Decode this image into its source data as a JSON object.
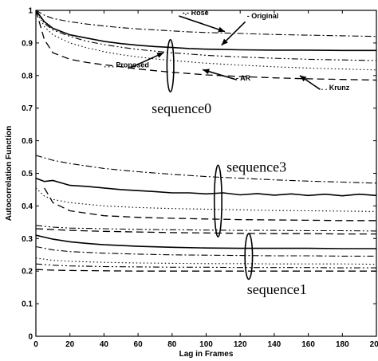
{
  "chart_data": {
    "type": "line",
    "xlabel": "Lag in Frames",
    "ylabel": "Autocorrelation Function",
    "xlim": [
      0,
      200
    ],
    "ylim": [
      0,
      1
    ],
    "xticks": [
      0,
      20,
      40,
      60,
      80,
      100,
      120,
      140,
      160,
      180,
      200
    ],
    "yticks": [
      0,
      0.1,
      0.2,
      0.3,
      0.4,
      0.5,
      0.6,
      0.7,
      0.8,
      0.9,
      1
    ],
    "ytick_labels": [
      "0",
      "0.1",
      "0.2",
      "0.3",
      "0.4",
      "0.5",
      "0.6",
      "0.7",
      "0.8",
      "0.9",
      "1"
    ],
    "grid": false,
    "method_labels": [
      {
        "text": "- Original",
        "x": 124,
        "y": 0.975
      },
      {
        "text": "-.- Rose",
        "x": 86,
        "y": 0.985
      },
      {
        "text": ". . . Proposed",
        "x": 40,
        "y": 0.825
      },
      {
        "text": "- - AR",
        "x": 115,
        "y": 0.785
      },
      {
        "text": "- . . Krunz",
        "x": 165,
        "y": 0.755
      }
    ],
    "group_labels": [
      {
        "text": "sequence0",
        "x": 68,
        "y": 0.685
      },
      {
        "text": "sequence3",
        "x": 112,
        "y": 0.505
      },
      {
        "text": "sequence1",
        "x": 124,
        "y": 0.13
      }
    ],
    "series": [
      {
        "group": "sequence0",
        "name": "Original",
        "style": "solid",
        "x": [
          0,
          5,
          10,
          20,
          30,
          40,
          50,
          60,
          70,
          80,
          90,
          100,
          110,
          120,
          140,
          160,
          180,
          200
        ],
        "y": [
          1.0,
          0.965,
          0.945,
          0.925,
          0.915,
          0.905,
          0.898,
          0.893,
          0.889,
          0.886,
          0.883,
          0.881,
          0.88,
          0.879,
          0.878,
          0.878,
          0.877,
          0.877
        ]
      },
      {
        "group": "sequence0",
        "name": "Rose",
        "style": "dashdot",
        "x": [
          0,
          5,
          10,
          20,
          30,
          40,
          50,
          60,
          70,
          80,
          90,
          100,
          120,
          140,
          160,
          180,
          200
        ],
        "y": [
          1.0,
          0.985,
          0.975,
          0.965,
          0.958,
          0.952,
          0.947,
          0.943,
          0.94,
          0.937,
          0.934,
          0.932,
          0.929,
          0.926,
          0.924,
          0.922,
          0.92
        ]
      },
      {
        "group": "sequence0",
        "name": "Proposed",
        "style": "dotted",
        "x": [
          0,
          5,
          10,
          20,
          30,
          40,
          50,
          60,
          70,
          80,
          90,
          100,
          120,
          140,
          160,
          180,
          200
        ],
        "y": [
          1.0,
          0.95,
          0.925,
          0.9,
          0.885,
          0.873,
          0.864,
          0.857,
          0.851,
          0.846,
          0.842,
          0.838,
          0.832,
          0.827,
          0.823,
          0.82,
          0.817
        ]
      },
      {
        "group": "sequence0",
        "name": "AR",
        "style": "dashed",
        "x": [
          0,
          5,
          10,
          20,
          30,
          40,
          50,
          60,
          70,
          80,
          90,
          100,
          120,
          140,
          160,
          180,
          200
        ],
        "y": [
          1.0,
          0.91,
          0.87,
          0.85,
          0.84,
          0.833,
          0.827,
          0.82,
          0.815,
          0.81,
          0.806,
          0.802,
          0.797,
          0.793,
          0.79,
          0.788,
          0.786
        ]
      },
      {
        "group": "sequence0",
        "name": "Krunz",
        "style": "dashdotdot",
        "x": [
          0,
          5,
          10,
          20,
          30,
          40,
          50,
          60,
          80,
          100,
          120,
          140,
          160,
          180,
          200
        ],
        "y": [
          1.0,
          0.96,
          0.94,
          0.92,
          0.905,
          0.895,
          0.887,
          0.88,
          0.87,
          0.862,
          0.857,
          0.853,
          0.85,
          0.848,
          0.846
        ]
      },
      {
        "group": "sequence3",
        "name": "Rose",
        "style": "dashdot",
        "x": [
          0,
          10,
          20,
          40,
          60,
          80,
          100,
          120,
          140,
          160,
          180,
          200
        ],
        "y": [
          0.555,
          0.54,
          0.53,
          0.515,
          0.505,
          0.497,
          0.49,
          0.485,
          0.48,
          0.476,
          0.473,
          0.47
        ]
      },
      {
        "group": "sequence3",
        "name": "Original",
        "style": "solid",
        "x": [
          0,
          5,
          10,
          20,
          30,
          40,
          50,
          60,
          70,
          80,
          90,
          100,
          110,
          120,
          130,
          140,
          150,
          160,
          170,
          180,
          190,
          200
        ],
        "y": [
          0.485,
          0.475,
          0.478,
          0.463,
          0.46,
          0.455,
          0.45,
          0.447,
          0.444,
          0.44,
          0.44,
          0.437,
          0.44,
          0.434,
          0.438,
          0.433,
          0.437,
          0.432,
          0.436,
          0.431,
          0.436,
          0.432
        ]
      },
      {
        "group": "sequence3",
        "name": "Proposed",
        "style": "dotted",
        "x": [
          0,
          5,
          10,
          20,
          40,
          60,
          80,
          100,
          120,
          140,
          160,
          180,
          200
        ],
        "y": [
          0.455,
          0.43,
          0.42,
          0.41,
          0.4,
          0.395,
          0.392,
          0.39,
          0.388,
          0.386,
          0.385,
          0.384,
          0.383
        ]
      },
      {
        "group": "sequence3",
        "name": "AR",
        "style": "dashed",
        "x": [
          5,
          10,
          20,
          40,
          60,
          80,
          100,
          120,
          140,
          160,
          180,
          200
        ],
        "y": [
          0.455,
          0.41,
          0.385,
          0.37,
          0.365,
          0.362,
          0.36,
          0.358,
          0.357,
          0.356,
          0.355,
          0.355
        ]
      },
      {
        "group": "sequence3",
        "name": "Krunz",
        "style": "dashdotdot",
        "x": [
          0,
          10,
          20,
          40,
          60,
          80,
          100,
          120,
          140,
          160,
          180,
          200
        ],
        "y": [
          0.34,
          0.335,
          0.332,
          0.33,
          0.328,
          0.327,
          0.326,
          0.325,
          0.325,
          0.324,
          0.324,
          0.323
        ]
      },
      {
        "group": "sequence3",
        "name": "AR (lower)",
        "style": "dashed",
        "x": [
          0,
          20,
          40,
          60,
          80,
          100,
          120,
          140,
          160,
          180,
          200
        ],
        "y": [
          0.33,
          0.325,
          0.322,
          0.32,
          0.318,
          0.317,
          0.316,
          0.315,
          0.315,
          0.314,
          0.314
        ]
      },
      {
        "group": "sequence1",
        "name": "Original",
        "style": "solid",
        "x": [
          0,
          10,
          20,
          30,
          40,
          60,
          80,
          100,
          120,
          140,
          160,
          180,
          200
        ],
        "y": [
          0.31,
          0.298,
          0.29,
          0.285,
          0.281,
          0.276,
          0.273,
          0.271,
          0.27,
          0.27,
          0.27,
          0.269,
          0.269
        ]
      },
      {
        "group": "sequence1",
        "name": "Rose",
        "style": "dashdot",
        "x": [
          0,
          10,
          20,
          40,
          60,
          80,
          100,
          120,
          140,
          160,
          180,
          200
        ],
        "y": [
          0.275,
          0.265,
          0.26,
          0.255,
          0.252,
          0.25,
          0.249,
          0.248,
          0.247,
          0.247,
          0.246,
          0.246
        ]
      },
      {
        "group": "sequence1",
        "name": "Proposed",
        "style": "dotted",
        "x": [
          0,
          10,
          20,
          40,
          60,
          80,
          100,
          120,
          140,
          160,
          180,
          200
        ],
        "y": [
          0.24,
          0.233,
          0.23,
          0.227,
          0.225,
          0.224,
          0.223,
          0.223,
          0.222,
          0.222,
          0.222,
          0.221
        ]
      },
      {
        "group": "sequence1",
        "name": "Krunz",
        "style": "dashdotdot",
        "x": [
          0,
          10,
          20,
          40,
          60,
          80,
          100,
          120,
          140,
          160,
          180,
          200
        ],
        "y": [
          0.222,
          0.218,
          0.216,
          0.214,
          0.213,
          0.212,
          0.212,
          0.211,
          0.211,
          0.211,
          0.21,
          0.21
        ]
      },
      {
        "group": "sequence1",
        "name": "AR",
        "style": "dashed",
        "x": [
          0,
          10,
          20,
          40,
          60,
          80,
          100,
          120,
          140,
          160,
          180,
          200
        ],
        "y": [
          0.205,
          0.203,
          0.202,
          0.201,
          0.2,
          0.2,
          0.2,
          0.2,
          0.2,
          0.2,
          0.2,
          0.2
        ]
      }
    ],
    "ellipses": [
      {
        "group": "sequence0",
        "cx": 79,
        "cy": 0.83,
        "rx": 2,
        "ry": 0.08
      },
      {
        "group": "sequence3",
        "cx": 107,
        "cy": 0.415,
        "rx": 2.2,
        "ry": 0.11
      },
      {
        "group": "sequence1",
        "cx": 125,
        "cy": 0.245,
        "rx": 2.2,
        "ry": 0.07
      }
    ],
    "arrows": [
      {
        "from": [
          123,
          0.965
        ],
        "to": [
          109,
          0.893
        ]
      },
      {
        "from": [
          56,
          0.825
        ],
        "to": [
          75,
          0.87
        ]
      },
      {
        "from": [
          84,
          0.983
        ],
        "to": [
          111,
          0.935
        ]
      },
      {
        "from": [
          118,
          0.787
        ],
        "to": [
          98,
          0.818
        ]
      },
      {
        "from": [
          167,
          0.757
        ],
        "to": [
          155,
          0.8
        ]
      }
    ]
  }
}
